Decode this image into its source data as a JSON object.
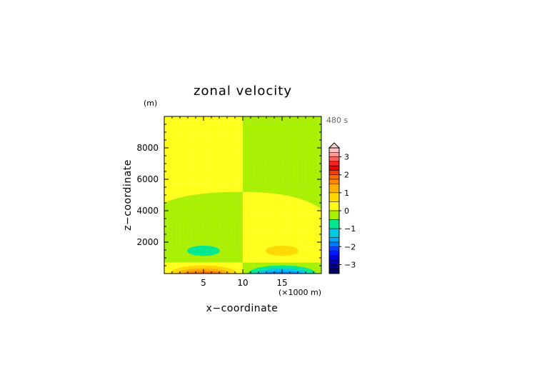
{
  "chart_data": {
    "type": "heatmap",
    "title": "zonal velocity",
    "xlabel": "x−coordinate",
    "ylabel": "z−coordinate",
    "x_unit": "(×1000 m)",
    "y_unit": "(m)",
    "time_label": "480 s",
    "xlim": [
      0,
      20
    ],
    "ylim": [
      0,
      10000
    ],
    "x_ticks": [
      5,
      10,
      15
    ],
    "y_ticks": [
      2000,
      4000,
      6000,
      8000
    ],
    "x_tick_labels": [
      "5",
      "10",
      "15"
    ],
    "y_tick_labels": [
      "2000",
      "4000",
      "6000",
      "8000"
    ],
    "grid": false,
    "colorbar": {
      "labels": [
        "3",
        "2",
        "1",
        "0",
        "−1",
        "−2",
        "−3"
      ],
      "label_values": [
        3,
        2,
        1,
        0,
        -1,
        -2,
        -3
      ],
      "bins": [
        {
          "lo": 3.25,
          "hi": 3.5,
          "color": "#ffc0c0"
        },
        {
          "lo": 3.0,
          "hi": 3.25,
          "color": "#ff9a9a"
        },
        {
          "lo": 2.75,
          "hi": 3.0,
          "color": "#ff6060"
        },
        {
          "lo": 2.5,
          "hi": 2.75,
          "color": "#ff2020"
        },
        {
          "lo": 2.25,
          "hi": 2.5,
          "color": "#e80000"
        },
        {
          "lo": 2.0,
          "hi": 2.25,
          "color": "#ff3a00"
        },
        {
          "lo": 1.75,
          "hi": 2.0,
          "color": "#ff6a00"
        },
        {
          "lo": 1.5,
          "hi": 1.75,
          "color": "#ff8a00"
        },
        {
          "lo": 1.0,
          "hi": 1.5,
          "color": "#ffb000"
        },
        {
          "lo": 0.5,
          "hi": 1.0,
          "color": "#ffd800"
        },
        {
          "lo": 0.0,
          "hi": 0.5,
          "color": "#ffff1a"
        },
        {
          "lo": -0.5,
          "hi": 0.0,
          "color": "#a8f000"
        },
        {
          "lo": -1.0,
          "hi": -0.5,
          "color": "#00e890"
        },
        {
          "lo": -1.5,
          "hi": -1.0,
          "color": "#00c8e0"
        },
        {
          "lo": -1.75,
          "hi": -1.5,
          "color": "#00a8ff"
        },
        {
          "lo": -2.0,
          "hi": -1.75,
          "color": "#0078ff"
        },
        {
          "lo": -2.25,
          "hi": -2.0,
          "color": "#0040ff"
        },
        {
          "lo": -2.5,
          "hi": -2.25,
          "color": "#0018ff"
        },
        {
          "lo": -2.75,
          "hi": -2.5,
          "color": "#0000e0"
        },
        {
          "lo": -3.0,
          "hi": -2.75,
          "color": "#0000b8"
        },
        {
          "lo": -3.25,
          "hi": -3.0,
          "color": "#000090"
        },
        {
          "lo": -3.5,
          "hi": -3.25,
          "color": "#000060"
        }
      ]
    },
    "regions": [
      {
        "x": [
          0,
          10
        ],
        "y": [
          5200,
          10000
        ],
        "value": 0.25,
        "note": "upper left"
      },
      {
        "x": [
          0,
          10
        ],
        "y": [
          700,
          5200
        ],
        "value": -0.25,
        "note": "left middle, edge lower toward x=0"
      },
      {
        "x": [
          10,
          20
        ],
        "y": [
          0,
          5200
        ],
        "value": 0.25,
        "note": "right lower"
      },
      {
        "x": [
          10,
          20
        ],
        "y": [
          5200,
          10000
        ],
        "value": -0.25,
        "note": "upper right"
      },
      {
        "x": [
          0,
          10
        ],
        "y": [
          0,
          700
        ],
        "value": 0.25,
        "note": "near-surface left"
      },
      {
        "x": [
          10,
          20
        ],
        "y": [
          0,
          700
        ],
        "value": -0.25,
        "note": "near-surface right"
      }
    ],
    "features": [
      {
        "kind": "ellipse",
        "cx": 5.0,
        "cy": 1450,
        "rx": 2.1,
        "ry": 330,
        "value": -0.75
      },
      {
        "kind": "ellipse",
        "cx": 15.0,
        "cy": 1450,
        "rx": 2.1,
        "ry": 330,
        "value": 0.75
      },
      {
        "kind": "ellipse",
        "cx": 5.0,
        "cy": 0,
        "rx": 4.3,
        "ry": 520,
        "value": 0.75
      },
      {
        "kind": "ellipse",
        "cx": 5.0,
        "cy": 0,
        "rx": 3.4,
        "ry": 330,
        "value": 1.25
      },
      {
        "kind": "ellipse",
        "cx": 5.0,
        "cy": 0,
        "rx": 2.6,
        "ry": 200,
        "value": 1.6
      },
      {
        "kind": "ellipse",
        "cx": 5.0,
        "cy": 0,
        "rx": 2.0,
        "ry": 100,
        "value": 1.9
      },
      {
        "kind": "ellipse",
        "cx": 15.0,
        "cy": 0,
        "rx": 4.3,
        "ry": 520,
        "value": -0.75
      },
      {
        "kind": "ellipse",
        "cx": 15.0,
        "cy": 0,
        "rx": 3.4,
        "ry": 330,
        "value": -1.25
      },
      {
        "kind": "ellipse",
        "cx": 15.0,
        "cy": 0,
        "rx": 2.6,
        "ry": 200,
        "value": -1.6
      },
      {
        "kind": "ellipse",
        "cx": 15.0,
        "cy": 0,
        "rx": 2.0,
        "ry": 100,
        "value": -1.9
      }
    ]
  }
}
